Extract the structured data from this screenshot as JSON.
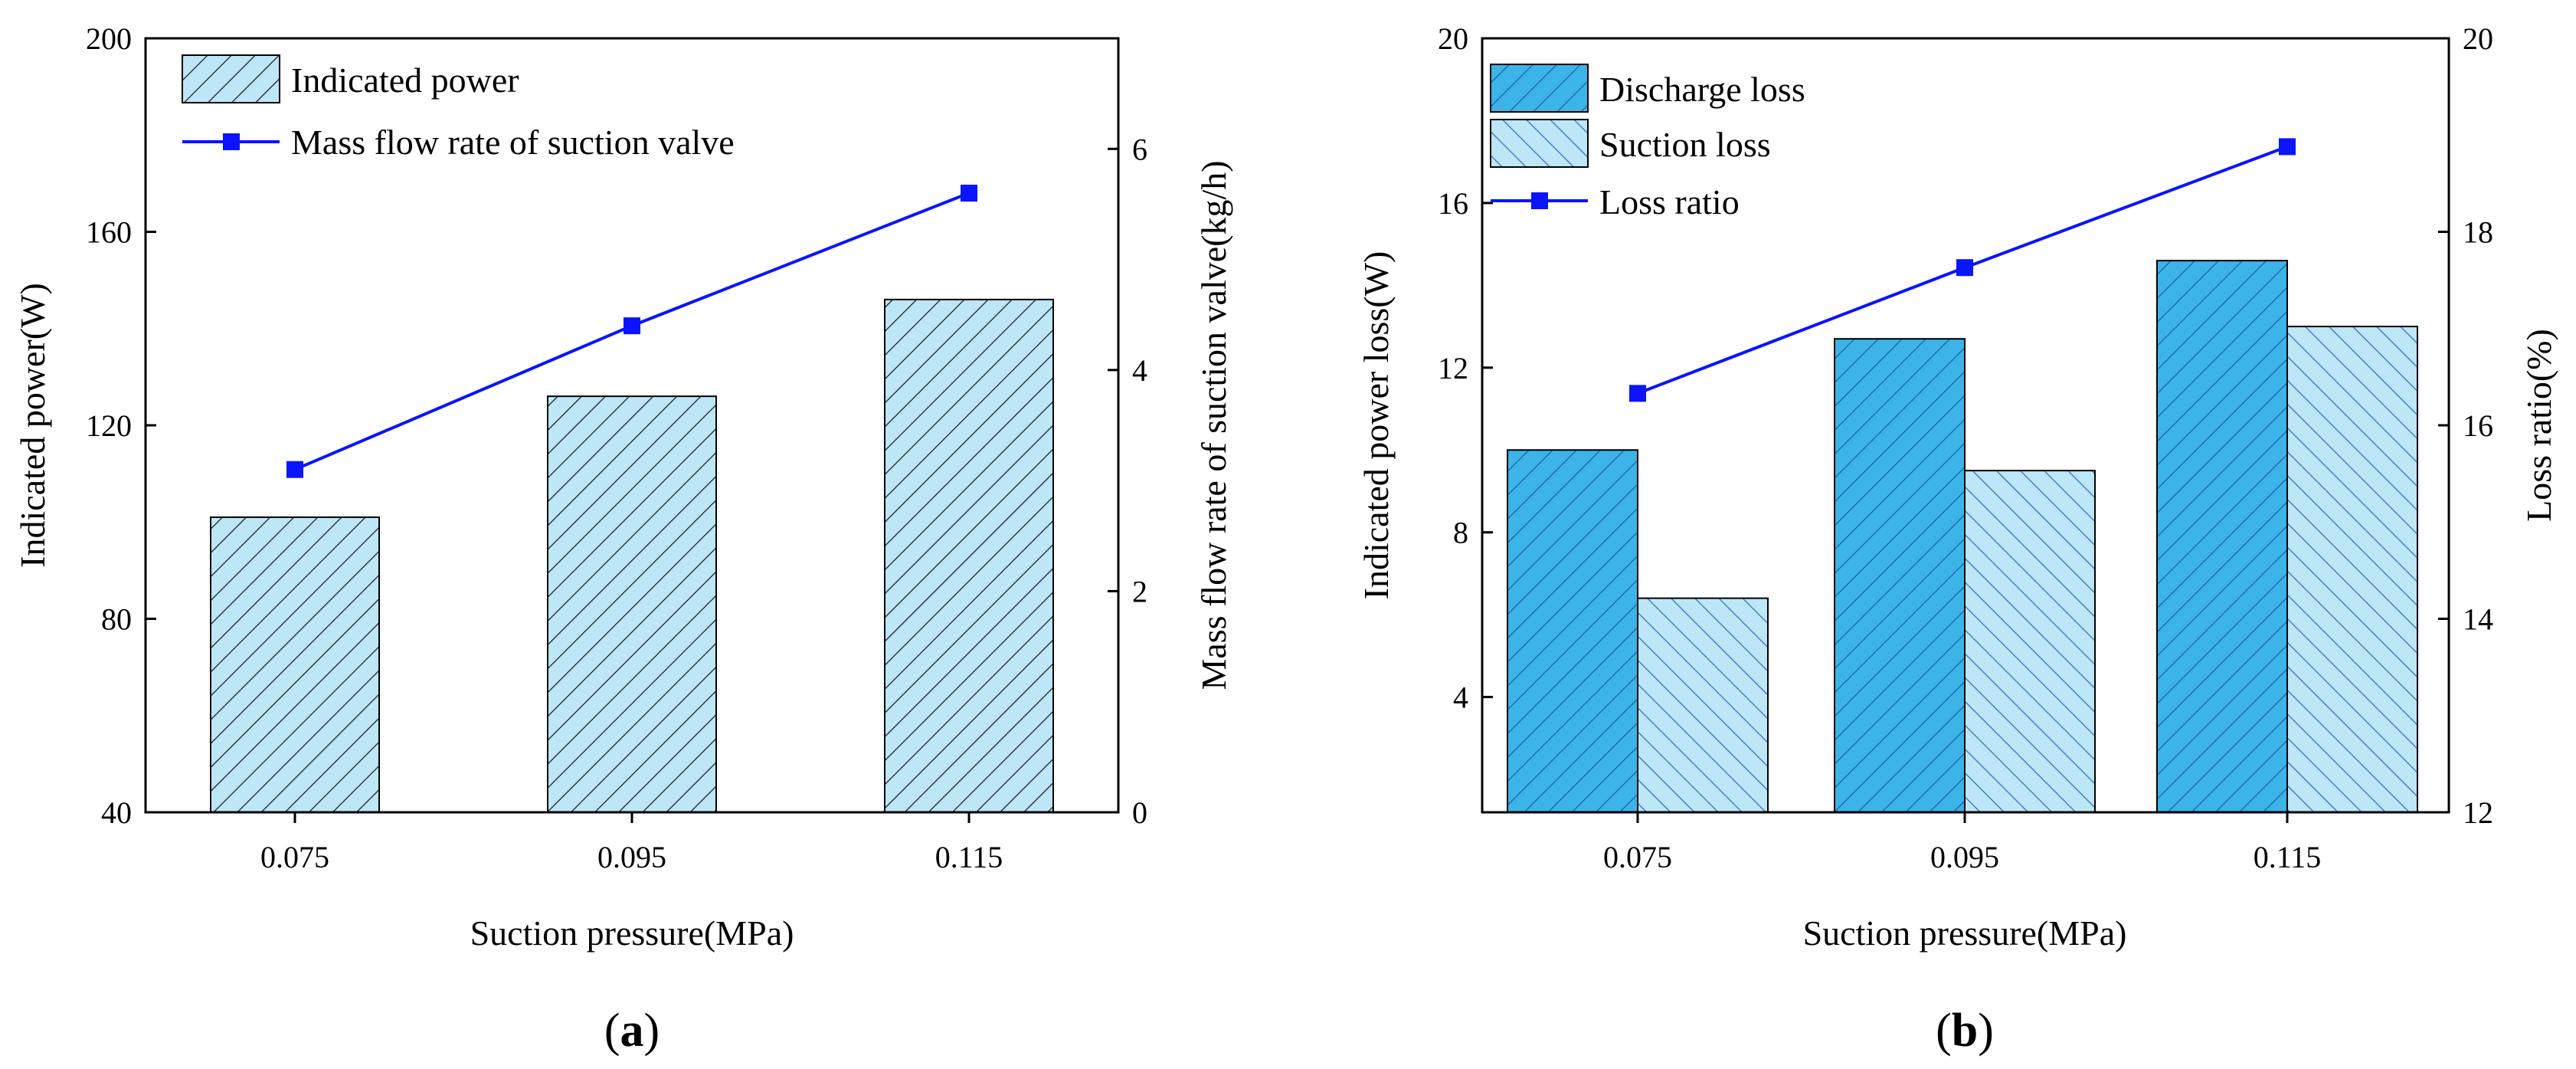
{
  "chart_data": [
    {
      "id": "a",
      "type": "bar",
      "panel_label": "(a)",
      "panel_letter": "a",
      "categories": [
        "0.075",
        "0.095",
        "0.115"
      ],
      "xlabel": "Suction pressure(MPa)",
      "ylabel": "Indicated power(W)",
      "ylim": [
        40,
        200
      ],
      "yticks": [
        "40",
        "80",
        "120",
        "160",
        "200"
      ],
      "y2label": "Mass flow rate of suction valve(kg/h)",
      "y2lim": [
        0,
        7
      ],
      "y2ticks": [
        "0",
        "2",
        "4",
        "6"
      ],
      "series": [
        {
          "name": "Indicated power",
          "kind": "bar",
          "axis": "left",
          "color": "#bde6f7",
          "hatch": "fwd",
          "values": [
            101,
            126,
            146
          ]
        },
        {
          "name": "Mass flow rate of suction valve",
          "kind": "line",
          "axis": "right",
          "color": "#0a14ff",
          "values": [
            3.1,
            4.4,
            5.6
          ]
        }
      ]
    },
    {
      "id": "b",
      "type": "bar",
      "panel_label": "(b)",
      "panel_letter": "b",
      "categories": [
        "0.075",
        "0.095",
        "0.115"
      ],
      "xlabel": "Suction pressure(MPa)",
      "ylabel": "Indicated power loss(W)",
      "ylim": [
        1.2,
        20
      ],
      "yticks": [
        "4",
        "8",
        "12",
        "16",
        "20"
      ],
      "y2label": "Loss ratio(%)",
      "y2lim": [
        12,
        20
      ],
      "y2ticks": [
        "12",
        "14",
        "16",
        "18",
        "20"
      ],
      "series": [
        {
          "name": "Discharge loss",
          "kind": "bar",
          "axis": "left",
          "color": "#3cb4e8",
          "hatch": "fwd",
          "values": [
            10.0,
            12.7,
            14.6
          ]
        },
        {
          "name": "Suction loss",
          "kind": "bar",
          "axis": "left",
          "color": "#bde6f7",
          "hatch": "back",
          "values": [
            6.4,
            9.5,
            13.0
          ]
        },
        {
          "name": "Loss ratio",
          "kind": "line",
          "axis": "right",
          "color": "#0a14ff",
          "values": [
            16.33,
            17.63,
            18.88
          ]
        }
      ]
    }
  ]
}
